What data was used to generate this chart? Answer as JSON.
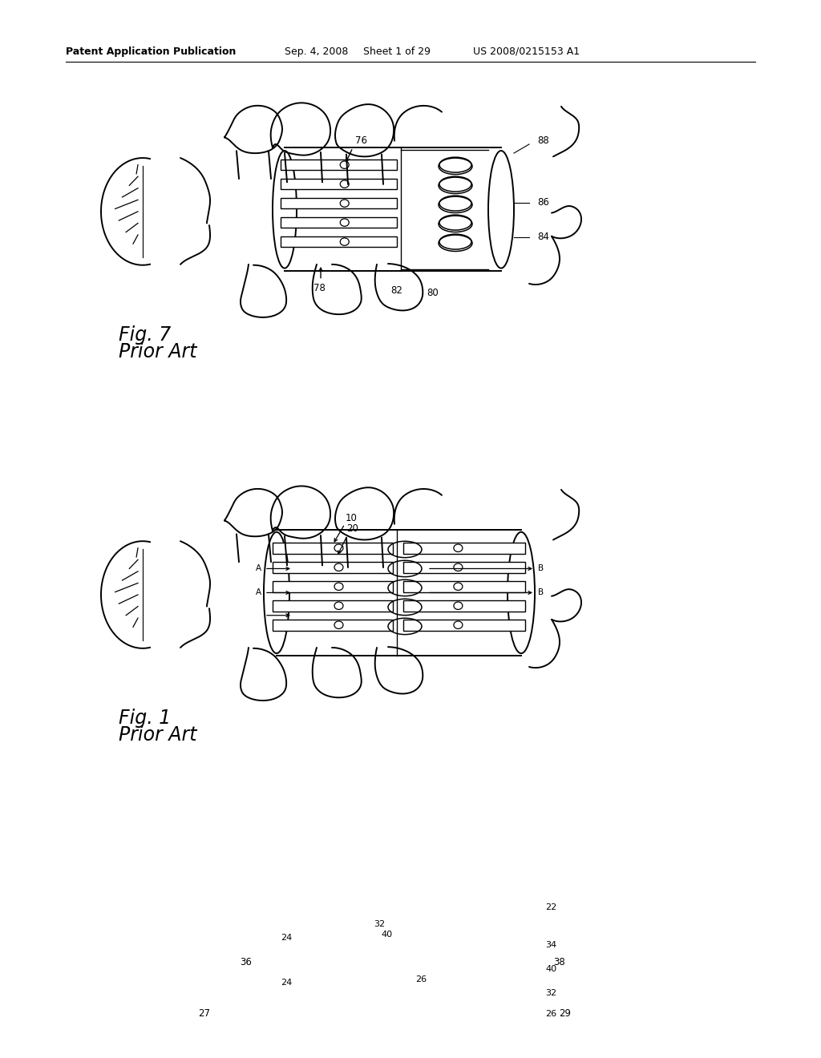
{
  "background_color": "#ffffff",
  "page_width": 10.24,
  "page_height": 13.2,
  "header_text": "Patent Application Publication",
  "header_date": "Sep. 4, 2008",
  "header_sheet": "Sheet 1 of 29",
  "header_patent": "US 2008/0215153 A1",
  "fig7_label": "Fig. 7",
  "fig7_sublabel": "Prior Art",
  "fig1_label": "Fig. 1",
  "fig1_sublabel": "Prior Art",
  "line_color": "#000000"
}
